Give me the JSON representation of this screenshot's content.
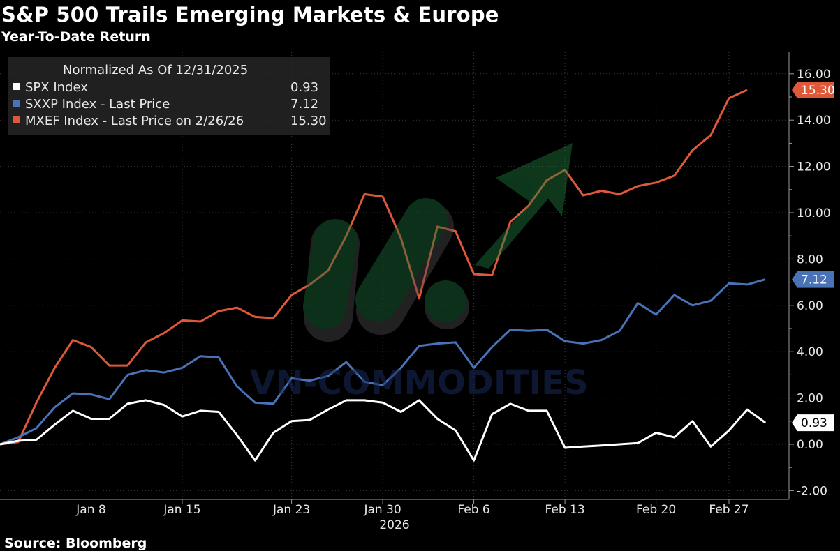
{
  "header": {
    "title": "S&P 500 Trails Emerging Markets & Europe",
    "subtitle": "Year-To-Date Return"
  },
  "footer": {
    "source": "Source: Bloomberg"
  },
  "legend": {
    "header": "Normalized As Of 12/31/2025",
    "entries": [
      {
        "label": "SPX Index",
        "value": "0.93",
        "color": "#ffffff"
      },
      {
        "label": "SXXP Index - Last Price",
        "value": "7.12",
        "color": "#4a72b6"
      },
      {
        "label": "MXEF Index - Last Price on 2/26/26",
        "value": "15.30",
        "color": "#e0583a"
      }
    ]
  },
  "watermark": {
    "text": "VN-COMMODITIES"
  },
  "chart_data": {
    "type": "line",
    "x_tick_labels": [
      "Jan 8",
      "Jan 15",
      "Jan 23",
      "Jan 30",
      "Feb 6",
      "Feb 13",
      "Feb 20",
      "Feb 27"
    ],
    "x_tick_index": [
      5,
      10,
      16,
      21,
      26,
      31,
      36,
      40
    ],
    "x_year_label": "2026",
    "ylim": [
      -2.5,
      17
    ],
    "y_ticks": [
      "-2.00",
      "0.00",
      "2.00",
      "4.00",
      "6.00",
      "8.00",
      "10.00",
      "12.00",
      "14.00",
      "16.00"
    ],
    "y_tick_values": [
      -2,
      0,
      2,
      4,
      6,
      8,
      10,
      12,
      14,
      16
    ],
    "series": [
      {
        "name": "SPX Index",
        "color": "#ffffff",
        "end_label": "0.93",
        "values": [
          0,
          0.15,
          0.2,
          0.85,
          1.45,
          1.1,
          1.1,
          1.75,
          1.9,
          1.7,
          1.2,
          1.45,
          1.4,
          0.4,
          -0.7,
          0.5,
          1.0,
          1.05,
          1.5,
          1.9,
          1.9,
          1.8,
          1.4,
          1.9,
          1.1,
          0.6,
          -0.7,
          1.3,
          1.75,
          1.45,
          1.45,
          -0.15,
          -0.1,
          -0.05,
          0,
          0.05,
          0.5,
          0.3,
          1.0,
          -0.1,
          0.6,
          1.5,
          0.93
        ]
      },
      {
        "name": "SXXP Index - Last Price",
        "color": "#4a72b6",
        "end_label": "7.12",
        "values": [
          0,
          0.3,
          0.7,
          1.6,
          2.2,
          2.15,
          1.95,
          3.0,
          3.2,
          3.1,
          3.3,
          3.8,
          3.75,
          2.5,
          1.8,
          1.75,
          2.85,
          2.75,
          2.95,
          3.55,
          2.7,
          2.55,
          3.3,
          4.25,
          4.35,
          4.4,
          3.3,
          4.2,
          4.95,
          4.9,
          4.95,
          4.45,
          4.35,
          4.5,
          4.9,
          6.1,
          5.6,
          6.45,
          6.0,
          6.2,
          6.95,
          6.9,
          7.12
        ]
      },
      {
        "name": "MXEF Index - Last Price on 2/26/26",
        "color": "#e0583a",
        "end_label": "15.30",
        "values": [
          0,
          0.1,
          1.8,
          3.3,
          4.5,
          4.2,
          3.4,
          3.4,
          4.4,
          4.8,
          5.35,
          5.3,
          5.75,
          5.9,
          5.5,
          5.45,
          6.45,
          6.9,
          7.5,
          9.0,
          10.8,
          10.7,
          8.9,
          6.3,
          9.4,
          9.2,
          7.35,
          7.3,
          9.6,
          10.3,
          11.4,
          11.85,
          10.75,
          10.95,
          10.8,
          11.15,
          11.3,
          11.6,
          12.7,
          13.35,
          14.95,
          15.3
        ]
      }
    ]
  }
}
